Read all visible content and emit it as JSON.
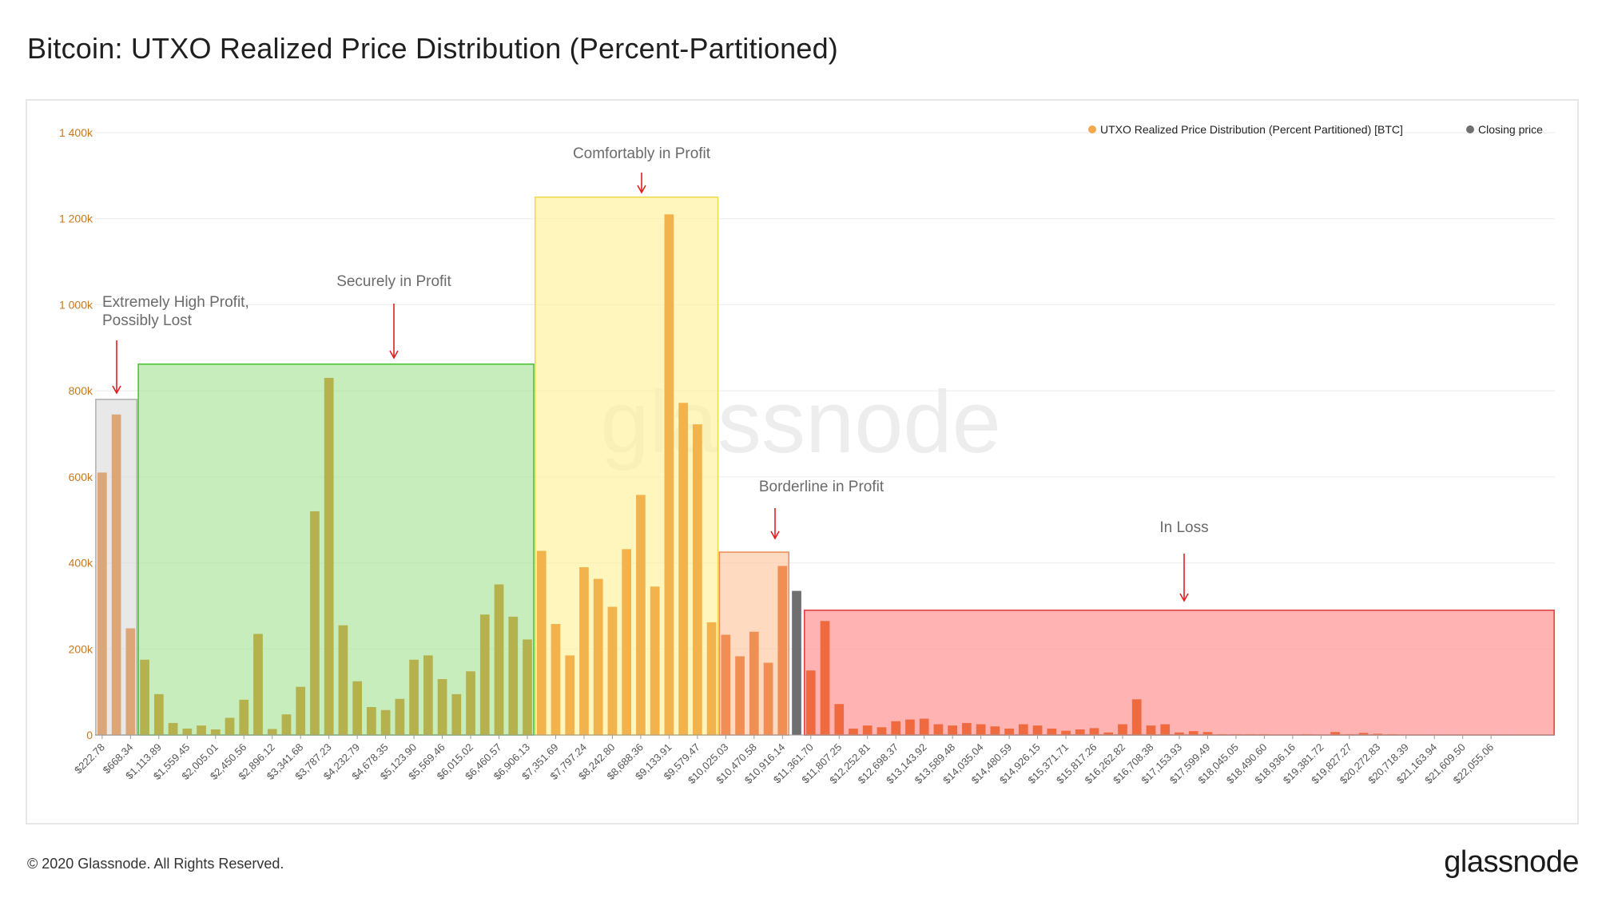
{
  "page": {
    "title": "Bitcoin: UTXO Realized Price Distribution (Percent-Partitioned)",
    "copyright": "© 2020 Glassnode. All Rights Reserved.",
    "logo": "glassnode",
    "watermark": "glassnode"
  },
  "chart_data": {
    "type": "bar",
    "title": "Bitcoin: UTXO Realized Price Distribution (Percent-Partitioned)",
    "xlabel": "",
    "ylabel": "",
    "ylim": [
      0,
      1400000
    ],
    "y_ticks": [
      {
        "value": 0,
        "label": "0"
      },
      {
        "value": 200000,
        "label": "200k"
      },
      {
        "value": 400000,
        "label": "400k"
      },
      {
        "value": 600000,
        "label": "600k"
      },
      {
        "value": 800000,
        "label": "800k"
      },
      {
        "value": 1000000,
        "label": "1 000k"
      },
      {
        "value": 1200000,
        "label": "1 200k"
      },
      {
        "value": 1400000,
        "label": "1 400k"
      }
    ],
    "grid": true,
    "legend_position": "top-right",
    "legend": [
      {
        "label": "UTXO Realized Price Distribution (Percent Partitioned) [BTC]",
        "color": "#f4a84d"
      },
      {
        "label": "Closing price",
        "color": "#6f6f6f"
      }
    ],
    "tick_labels": [
      "$222.78",
      "$668.34",
      "$1,113.89",
      "$1,559.45",
      "$2,005.01",
      "$2,450.56",
      "$2,896.12",
      "$3,341.68",
      "$3,787.23",
      "$4,232.79",
      "$4,678.35",
      "$5,123.90",
      "$5,569.46",
      "$6,015.02",
      "$6,460.57",
      "$6,906.13",
      "$7,351.69",
      "$7,797.24",
      "$8,242.80",
      "$8,688.36",
      "$9,133.91",
      "$9,579.47",
      "$10,025.03",
      "$10,470.58",
      "$10,916.14",
      "$11,361.70",
      "$11,807.25",
      "$12,252.81",
      "$12,698.37",
      "$13,143.92",
      "$13,589.48",
      "$14,035.04",
      "$14,480.59",
      "$14,926.15",
      "$15,371.71",
      "$15,817.26",
      "$16,262.82",
      "$16,708.38",
      "$17,153.93",
      "$17,599.49",
      "$18,045.05",
      "$18,490.60",
      "$18,936.16",
      "$19,381.72",
      "$19,827.27",
      "$20,272.83",
      "$20,718.39",
      "$21,163.94",
      "$21,609.50",
      "$22,055.06"
    ],
    "closing_price_bin": 49,
    "series": [
      {
        "name": "UTXO Realized Price Distribution (Percent Partitioned) [BTC]",
        "values": [
          610000,
          745000,
          248000,
          175000,
          95000,
          28000,
          15000,
          22000,
          13000,
          40000,
          82000,
          235000,
          14000,
          48000,
          112000,
          520000,
          830000,
          255000,
          125000,
          65000,
          58000,
          84000,
          175000,
          185000,
          130000,
          95000,
          148000,
          280000,
          350000,
          275000,
          222000,
          428000,
          258000,
          185000,
          390000,
          363000,
          298000,
          432000,
          558000,
          345000,
          1210000,
          772000,
          722000,
          262000,
          233000,
          183000,
          240000,
          168000,
          393000,
          335000,
          150000,
          265000,
          72000,
          15000,
          22000,
          18000,
          32000,
          36000,
          38000,
          25000,
          22000,
          28000,
          25000,
          20000,
          15000,
          25000,
          22000,
          15000,
          10000,
          13000,
          16000,
          6000,
          25000,
          83000,
          22000,
          25000,
          6000,
          9000,
          7000,
          2000,
          2000,
          2000,
          2000,
          1000,
          1000,
          2000,
          1000,
          7000,
          2000,
          5000,
          3000,
          2000,
          1000,
          1000,
          1000,
          1000,
          1000,
          1000,
          1000,
          1000,
          1000,
          1000,
          1000
        ]
      }
    ],
    "zones": [
      {
        "label": "Extremely High Profit,\nPossibly Lost",
        "from_bin": 0,
        "to_bin": 2,
        "top": 780000,
        "fill": "#dcdcdc",
        "stroke": "#b0b0b0",
        "bar_color": "#dda677"
      },
      {
        "label": "Securely in Profit",
        "from_bin": 3,
        "to_bin": 30,
        "top": 862000,
        "fill": "#a9e39a",
        "stroke": "#43c22a",
        "bar_color": "#b5b14c"
      },
      {
        "label": "Comfortably in Profit",
        "from_bin": 31,
        "to_bin": 43,
        "top": 1250000,
        "fill": "#fff19a",
        "stroke": "#f0d94a",
        "bar_color": "#f2b24c"
      },
      {
        "label": "Borderline in Profit",
        "from_bin": 44,
        "to_bin": 48,
        "top": 425000,
        "fill": "#fdc6a0",
        "stroke": "#ee8a54",
        "bar_color": "#f18e54"
      },
      {
        "label": "In Loss",
        "from_bin": 50,
        "to_bin": 102,
        "top": 290000,
        "fill": "#ff8a8a",
        "stroke": "#e03a3a",
        "bar_color": "#f06a40"
      }
    ],
    "closing_price_color": "#6f6f6f",
    "annotation_arrow_color": "#e02020"
  }
}
